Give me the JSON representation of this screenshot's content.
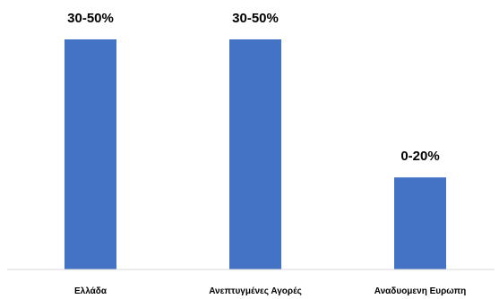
{
  "chart_data": {
    "type": "bar",
    "categories": [
      "Ελλάδα",
      "Ανεπτυγμένες Αγορές",
      "Αναδυομενη Ευρωπη"
    ],
    "values": [
      50,
      50,
      20
    ],
    "data_labels": [
      "30-50%",
      "30-50%",
      "0-20%"
    ],
    "ylim": [
      0,
      55
    ],
    "grid": false,
    "legend": "none",
    "bar_color": "#4472C4",
    "axis_color": "#d9d9d9"
  }
}
